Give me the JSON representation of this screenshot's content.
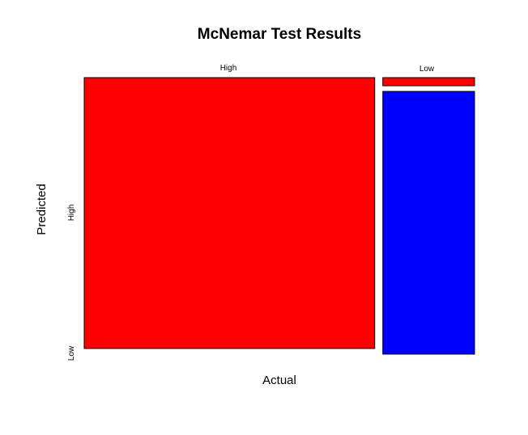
{
  "chart_data": {
    "type": "mosaic",
    "title": "McNemar Test Results",
    "xlabel": "Actual",
    "ylabel": "Predicted",
    "x_categories": [
      "High",
      "Low"
    ],
    "y_categories": [
      "Low",
      "High"
    ],
    "column_proportions": [
      0.76,
      0.24
    ],
    "cells": [
      {
        "actual": "High",
        "predicted": "High",
        "proportion": 1.0,
        "color": "#ff0000"
      },
      {
        "actual": "High",
        "predicted": "Low",
        "proportion": 0.0,
        "color": "#0000ff"
      },
      {
        "actual": "Low",
        "predicted": "High",
        "proportion": 0.03,
        "color": "#ff0000"
      },
      {
        "actual": "Low",
        "predicted": "Low",
        "proportion": 0.97,
        "color": "#0000ff"
      }
    ]
  }
}
